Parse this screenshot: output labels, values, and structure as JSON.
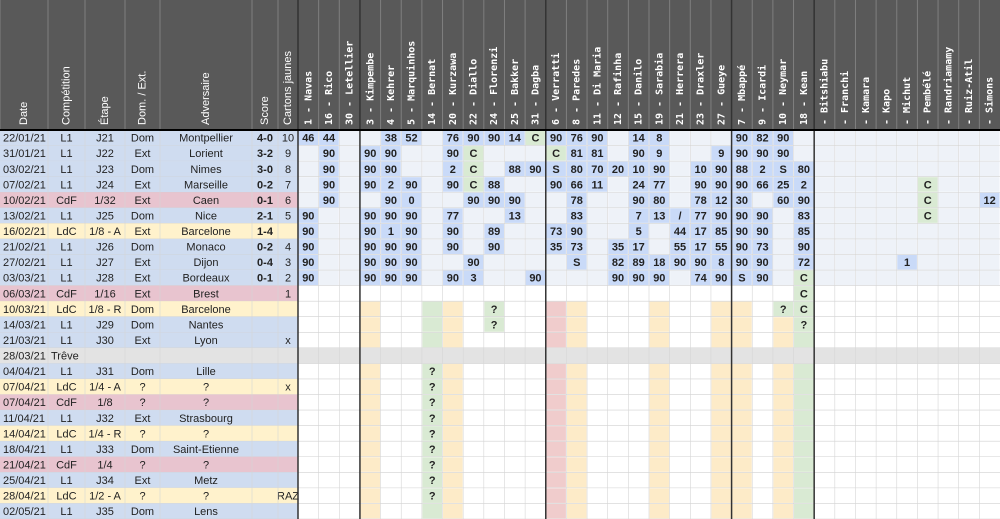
{
  "table": {
    "columns": [
      "Date",
      "Compétition",
      "Étape",
      "Dom. / Ext.",
      "Adversaire",
      "Score",
      "Cartons jaunes",
      "1 - Navas",
      "16 - Rico",
      "30 - Letellier",
      "3 - Kimpembe",
      "4 - Kehrer",
      "5 - Marquinhos",
      "14 - Bernat",
      "20 - Kurzawa",
      "22 - Diallo",
      "24 - Florenzi",
      "25 - Bakker",
      "31 - Dagba",
      "6 - Verratti",
      "8 - Paredes",
      "11 - Di Maria",
      "12 - Rafinha",
      "15 - Danilo",
      "19 - Sarabia",
      "21 - Herrera",
      "23 - Draxler",
      "27 - Gueye",
      "7 - Mbappé",
      "9 - Icardi",
      "10 - Neymar",
      "18 - Kean",
      "- Bitshiabu",
      "- Franchi",
      "- Kamara",
      "- Kapo",
      "- Michut",
      "- Pembélé",
      "- Randriamamy",
      "- Ruiz-Atil",
      "- Simons"
    ],
    "rows": [
      {
        "date": "22/01/21",
        "competition": "L1",
        "stage": "J21",
        "venue": "Dom",
        "opponent": "Montpellier",
        "score": "4-0",
        "score_color": "#38761d",
        "cards": 10,
        "cells": [
          46,
          44,
          null,
          null,
          38,
          52,
          null,
          76,
          90,
          90,
          14,
          "C",
          90,
          76,
          90,
          null,
          14,
          8,
          null,
          null,
          null,
          90,
          82,
          90,
          null,
          null,
          null,
          null,
          null,
          null,
          null,
          null,
          null,
          null
        ]
      },
      {
        "date": "31/01/21",
        "competition": "L1",
        "stage": "J22",
        "venue": "Ext",
        "opponent": "Lorient",
        "score": "3-2",
        "score_color": "#990000",
        "cards": 9,
        "cells": [
          null,
          90,
          null,
          90,
          90,
          null,
          null,
          90,
          "C",
          null,
          null,
          null,
          "C",
          81,
          81,
          null,
          90,
          9,
          null,
          null,
          9,
          90,
          90,
          90,
          null,
          null,
          null,
          null,
          null,
          null,
          null,
          null,
          null,
          null
        ]
      },
      {
        "date": "03/02/21",
        "competition": "L1",
        "stage": "J23",
        "venue": "Dom",
        "opponent": "Nimes",
        "score": "3-0",
        "score_color": "#38761d",
        "cards": 8,
        "cells": [
          null,
          90,
          null,
          90,
          90,
          null,
          null,
          2,
          "C",
          null,
          88,
          90,
          "S",
          80,
          70,
          20,
          10,
          90,
          null,
          10,
          90,
          88,
          2,
          "S",
          80,
          null,
          null,
          null,
          null,
          null,
          null,
          null,
          null,
          null
        ]
      },
      {
        "date": "07/02/21",
        "competition": "L1",
        "stage": "J24",
        "venue": "Ext",
        "opponent": "Marseille",
        "score": "0-2",
        "score_color": "#38761d",
        "cards": 7,
        "cells": [
          null,
          90,
          null,
          90,
          2,
          90,
          null,
          90,
          "C",
          88,
          null,
          null,
          90,
          66,
          11,
          null,
          24,
          77,
          null,
          90,
          90,
          90,
          66,
          25,
          2,
          null,
          null,
          null,
          null,
          null,
          "C",
          null,
          null,
          null
        ]
      },
      {
        "date": "10/02/21",
        "competition": "CdF",
        "stage": "1/32",
        "venue": "Ext",
        "opponent": "Caen",
        "score": "0-1",
        "score_color": "#990000",
        "cards": 6,
        "cells": [
          null,
          90,
          null,
          null,
          90,
          0,
          null,
          null,
          90,
          90,
          90,
          null,
          null,
          78,
          null,
          null,
          90,
          80,
          null,
          78,
          12,
          30,
          null,
          60,
          90,
          null,
          null,
          null,
          null,
          null,
          "C",
          null,
          null,
          12
        ]
      },
      {
        "date": "13/02/21",
        "competition": "L1",
        "stage": "J25",
        "venue": "Dom",
        "opponent": "Nice",
        "score": "2-1",
        "score_color": "#38761d",
        "cards": 5,
        "cells": [
          90,
          null,
          null,
          90,
          90,
          90,
          null,
          77,
          null,
          null,
          13,
          null,
          null,
          83,
          null,
          null,
          7,
          13,
          "/",
          77,
          90,
          90,
          90,
          null,
          83,
          null,
          null,
          null,
          null,
          null,
          "C",
          null,
          null,
          null
        ]
      },
      {
        "date": "16/02/21",
        "competition": "LdC",
        "stage": "1/8 - A",
        "venue": "Ext",
        "opponent": "Barcelone",
        "score": "1-4",
        "score_color": "#38761d",
        "cards": null,
        "cells": [
          90,
          null,
          null,
          90,
          1,
          90,
          null,
          90,
          null,
          89,
          null,
          null,
          73,
          90,
          null,
          null,
          5,
          null,
          44,
          17,
          85,
          90,
          90,
          null,
          85,
          null,
          null,
          null,
          null,
          null,
          null,
          null,
          null,
          null
        ]
      },
      {
        "date": "21/02/21",
        "competition": "L1",
        "stage": "J26",
        "venue": "Dom",
        "opponent": "Monaco",
        "score": "0-2",
        "score_color": "#990000",
        "cards": 4,
        "cells": [
          90,
          null,
          null,
          90,
          90,
          90,
          null,
          90,
          null,
          90,
          null,
          null,
          35,
          73,
          null,
          35,
          17,
          null,
          55,
          17,
          55,
          90,
          73,
          null,
          90,
          null,
          null,
          null,
          null,
          null,
          null,
          null,
          null,
          null
        ]
      },
      {
        "date": "27/02/21",
        "competition": "L1",
        "stage": "J27",
        "venue": "Ext",
        "opponent": "Dijon",
        "score": "0-4",
        "score_color": "#38761d",
        "cards": 3,
        "cells": [
          90,
          null,
          null,
          90,
          90,
          90,
          null,
          null,
          90,
          null,
          null,
          null,
          null,
          "S",
          null,
          82,
          89,
          18,
          90,
          90,
          8,
          90,
          90,
          null,
          72,
          null,
          null,
          null,
          null,
          1,
          null,
          null,
          null,
          null
        ]
      },
      {
        "date": "03/03/21",
        "competition": "L1",
        "stage": "J28",
        "venue": "Ext",
        "opponent": "Bordeaux",
        "score": "0-1",
        "score_color": "#38761d",
        "cards": 2,
        "cells": [
          90,
          null,
          null,
          90,
          90,
          90,
          null,
          90,
          3,
          null,
          null,
          90,
          null,
          null,
          null,
          90,
          90,
          90,
          null,
          74,
          90,
          "S",
          90,
          null,
          "C",
          null,
          null,
          null,
          null,
          null,
          null,
          null,
          null,
          null
        ]
      },
      {
        "date": "06/03/21",
        "competition": "CdF",
        "stage": "1/16",
        "venue": "Ext",
        "opponent": "Brest",
        "score": null,
        "cards": 1,
        "cells": [
          null,
          null,
          null,
          null,
          null,
          null,
          null,
          null,
          null,
          null,
          null,
          null,
          null,
          null,
          null,
          null,
          null,
          null,
          null,
          null,
          null,
          null,
          null,
          null,
          "C",
          null,
          null,
          null,
          null,
          null,
          null,
          null,
          null,
          null
        ]
      },
      {
        "date": "10/03/21",
        "competition": "LdC",
        "stage": "1/8 - R",
        "venue": "Dom",
        "opponent": "Barcelone",
        "score": null,
        "cards": null,
        "cells": [
          null,
          null,
          null,
          null,
          null,
          null,
          null,
          null,
          null,
          "?",
          null,
          null,
          null,
          null,
          null,
          null,
          null,
          null,
          null,
          null,
          null,
          null,
          null,
          "?",
          "C",
          null,
          null,
          null,
          null,
          null,
          null,
          null,
          null,
          null
        ]
      },
      {
        "date": "14/03/21",
        "competition": "L1",
        "stage": "J29",
        "venue": "Dom",
        "opponent": "Nantes",
        "score": null,
        "cards": null,
        "cells": [
          null,
          null,
          null,
          null,
          null,
          null,
          null,
          null,
          null,
          "?",
          null,
          null,
          null,
          null,
          null,
          null,
          null,
          null,
          null,
          null,
          null,
          null,
          null,
          null,
          "?",
          null,
          null,
          null,
          null,
          null,
          null,
          null,
          null,
          null
        ]
      },
      {
        "date": "21/03/21",
        "competition": "L1",
        "stage": "J30",
        "venue": "Ext",
        "opponent": "Lyon",
        "score": null,
        "cards": "x",
        "cells": null
      },
      {
        "date": "28/03/21",
        "competition": "Trêve",
        "stage": null,
        "venue": null,
        "opponent": null,
        "score": null,
        "cards": null,
        "cells": null
      },
      {
        "date": "04/04/21",
        "competition": "L1",
        "stage": "J31",
        "venue": "Dom",
        "opponent": "Lille",
        "muted": "date",
        "score": null,
        "cards": null,
        "cells": [
          null,
          null,
          null,
          null,
          null,
          null,
          "?",
          null,
          null,
          null,
          null,
          null,
          null,
          null,
          null,
          null,
          null,
          null,
          null,
          null,
          null,
          null,
          null,
          null,
          null,
          null,
          null,
          null,
          null,
          null,
          null,
          null,
          null,
          null
        ]
      },
      {
        "date": "07/04/21",
        "competition": "LdC",
        "stage": "1/4 - A",
        "venue": "?",
        "opponent": "?",
        "muted": "all",
        "score": null,
        "cards": "x",
        "cells": [
          null,
          null,
          null,
          null,
          null,
          null,
          "?",
          null,
          null,
          null,
          null,
          null,
          null,
          null,
          null,
          null,
          null,
          null,
          null,
          null,
          null,
          null,
          null,
          null,
          null,
          null,
          null,
          null,
          null,
          null,
          null,
          null,
          null,
          null
        ]
      },
      {
        "date": "07/04/21",
        "competition": "CdF",
        "stage": "1/8",
        "venue": "?",
        "opponent": "?",
        "muted": "all",
        "score": null,
        "cards": null,
        "cells": [
          null,
          null,
          null,
          null,
          null,
          null,
          "?",
          null,
          null,
          null,
          null,
          null,
          null,
          null,
          null,
          null,
          null,
          null,
          null,
          null,
          null,
          null,
          null,
          null,
          null,
          null,
          null,
          null,
          null,
          null,
          null,
          null,
          null,
          null
        ]
      },
      {
        "date": "11/04/21",
        "competition": "L1",
        "stage": "J32",
        "venue": "Ext",
        "opponent": "Strasbourg",
        "muted": "date",
        "score": null,
        "cards": null,
        "cells": [
          null,
          null,
          null,
          null,
          null,
          null,
          "?",
          null,
          null,
          null,
          null,
          null,
          null,
          null,
          null,
          null,
          null,
          null,
          null,
          null,
          null,
          null,
          null,
          null,
          null,
          null,
          null,
          null,
          null,
          null,
          null,
          null,
          null,
          null
        ]
      },
      {
        "date": "14/04/21",
        "competition": "LdC",
        "stage": "1/4 - R",
        "venue": "?",
        "opponent": "?",
        "muted": "all",
        "score": null,
        "cards": null,
        "cells": [
          null,
          null,
          null,
          null,
          null,
          null,
          "?",
          null,
          null,
          null,
          null,
          null,
          null,
          null,
          null,
          null,
          null,
          null,
          null,
          null,
          null,
          null,
          null,
          null,
          null,
          null,
          null,
          null,
          null,
          null,
          null,
          null,
          null,
          null
        ]
      },
      {
        "date": "18/04/21",
        "competition": "L1",
        "stage": "J33",
        "venue": "Dom",
        "opponent": "Saint-Etienne",
        "muted": "date",
        "score": null,
        "cards": null,
        "cells": [
          null,
          null,
          null,
          null,
          null,
          null,
          "?",
          null,
          null,
          null,
          null,
          null,
          null,
          null,
          null,
          null,
          null,
          null,
          null,
          null,
          null,
          null,
          null,
          null,
          null,
          null,
          null,
          null,
          null,
          null,
          null,
          null,
          null,
          null
        ]
      },
      {
        "date": "21/04/21",
        "competition": "CdF",
        "stage": "1/4",
        "venue": "?",
        "opponent": "?",
        "muted": "all",
        "score": null,
        "cards": null,
        "cells": [
          null,
          null,
          null,
          null,
          null,
          null,
          "?",
          null,
          null,
          null,
          null,
          null,
          null,
          null,
          null,
          null,
          null,
          null,
          null,
          null,
          null,
          null,
          null,
          null,
          null,
          null,
          null,
          null,
          null,
          null,
          null,
          null,
          null,
          null
        ]
      },
      {
        "date": "25/04/21",
        "competition": "L1",
        "stage": "J34",
        "venue": "Ext",
        "opponent": "Metz",
        "muted": "date",
        "score": null,
        "cards": null,
        "cells": [
          null,
          null,
          null,
          null,
          null,
          null,
          "?",
          null,
          null,
          null,
          null,
          null,
          null,
          null,
          null,
          null,
          null,
          null,
          null,
          null,
          null,
          null,
          null,
          null,
          null,
          null,
          null,
          null,
          null,
          null,
          null,
          null,
          null,
          null
        ]
      },
      {
        "date": "28/04/21",
        "competition": "LdC",
        "stage": "1/2 - A",
        "venue": "?",
        "opponent": "?",
        "muted": "all",
        "score": null,
        "cards": "RAZ",
        "cells": [
          null,
          null,
          null,
          null,
          null,
          null,
          "?",
          null,
          null,
          null,
          null,
          null,
          null,
          null,
          null,
          null,
          null,
          null,
          null,
          null,
          null,
          null,
          null,
          null,
          null,
          null,
          null,
          null,
          null,
          null,
          null,
          null,
          null,
          null
        ]
      },
      {
        "date": "02/05/21",
        "competition": "L1",
        "stage": "J35",
        "venue": "Dom",
        "opponent": "Lens",
        "score": null,
        "cards": null,
        "cells": null
      }
    ]
  }
}
